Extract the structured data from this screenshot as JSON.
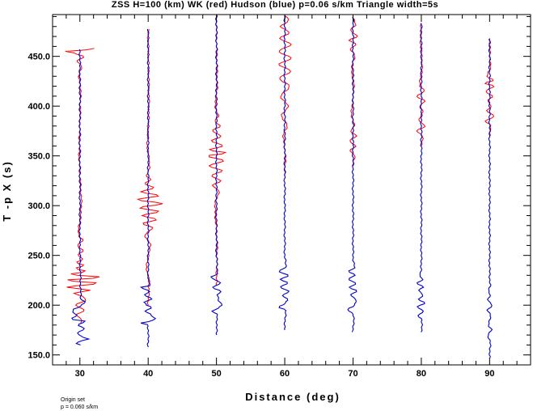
{
  "chart_data": {
    "type": "line",
    "title": "ZSS H=100 (km) WK (red) Hudson (blue) p=0.06 s/km Triangle width=5s",
    "xlabel": "Distance (deg)",
    "ylabel": "T -p X (s)",
    "xlim": [
      26,
      96
    ],
    "ylim": [
      140,
      492
    ],
    "x_ticks": [
      30,
      40,
      50,
      60,
      70,
      80,
      90
    ],
    "x_tick_labels": [
      "30",
      "40",
      "50",
      "60",
      "70",
      "80",
      "90"
    ],
    "y_ticks": [
      150,
      200,
      250,
      300,
      350,
      400,
      450
    ],
    "y_tick_labels": [
      "150.0",
      "200.0",
      "250.0",
      "300.0",
      "350.0",
      "400.0",
      "450.0"
    ],
    "footnote": [
      "Origin set",
      "p = 0.060 s/km"
    ],
    "colors": {
      "wk": "#ff0000",
      "hudson": "#0000cc"
    },
    "traces": [
      {
        "distance": 30,
        "hudson_t": [
          160,
          458
        ],
        "hudson": [
          [
            160,
            0
          ],
          [
            162,
            -0.6
          ],
          [
            164,
            0.3
          ],
          [
            166,
            1.2
          ],
          [
            168,
            0.4
          ],
          [
            172,
            -0.4
          ],
          [
            176,
            0.6
          ],
          [
            180,
            -0.2
          ],
          [
            184,
            0.7
          ],
          [
            186,
            -1.2
          ],
          [
            190,
            -0.4
          ],
          [
            193,
            -1.0
          ],
          [
            196,
            -0.9
          ],
          [
            198,
            -0.1
          ],
          [
            200,
            0.2
          ],
          [
            203,
            0.8
          ],
          [
            206,
            0.1
          ],
          [
            210,
            0.1
          ],
          [
            260,
            0.0
          ],
          [
            458,
            0
          ]
        ],
        "wk_t": [
          182,
          458
        ],
        "wk": [
          [
            182,
            0
          ],
          [
            185,
            0.3
          ],
          [
            190,
            -0.4
          ],
          [
            195,
            0.6
          ],
          [
            200,
            -0.6
          ],
          [
            205,
            0.8
          ],
          [
            208,
            0.6
          ],
          [
            212,
            -0.8
          ],
          [
            215,
            1.4
          ],
          [
            218,
            -1.8
          ],
          [
            222,
            2.5
          ],
          [
            225,
            -2.0
          ],
          [
            228,
            3.0
          ],
          [
            231,
            -1.4
          ],
          [
            234,
            0.8
          ],
          [
            237,
            -0.6
          ],
          [
            240,
            0.6
          ],
          [
            243,
            -0.5
          ],
          [
            246,
            0.5
          ],
          [
            250,
            -0.3
          ],
          [
            255,
            0.4
          ],
          [
            260,
            -0.3
          ],
          [
            265,
            0.4
          ],
          [
            270,
            -0.2
          ],
          [
            300,
            0.2
          ],
          [
            350,
            -0.1
          ],
          [
            420,
            0.1
          ],
          [
            430,
            -0.2
          ],
          [
            440,
            0.3
          ],
          [
            445,
            -0.4
          ],
          [
            450,
            0.5
          ],
          [
            453,
            -0.6
          ],
          [
            455,
            -2.0
          ],
          [
            456,
            0.8
          ],
          [
            458,
            2.0
          ]
        ]
      },
      {
        "distance": 40,
        "hudson_t": [
          158,
          478
        ],
        "hudson": [
          [
            158,
            0
          ],
          [
            180,
            0
          ],
          [
            182,
            -1.0
          ],
          [
            184,
            0.3
          ],
          [
            186,
            1.0
          ],
          [
            190,
            0.4
          ],
          [
            194,
            -0.3
          ],
          [
            198,
            0.5
          ],
          [
            200,
            -0.2
          ],
          [
            203,
            -0.6
          ],
          [
            206,
            0.5
          ],
          [
            210,
            -0.4
          ],
          [
            214,
            0.2
          ],
          [
            218,
            -1.0
          ],
          [
            220,
            0.3
          ],
          [
            224,
            0.1
          ],
          [
            230,
            0.0
          ],
          [
            478,
            0
          ]
        ],
        "wk_t": [
          200,
          478
        ],
        "wk": [
          [
            200,
            0
          ],
          [
            220,
            0.1
          ],
          [
            240,
            -0.2
          ],
          [
            260,
            0.3
          ],
          [
            270,
            -0.4
          ],
          [
            278,
            0.6
          ],
          [
            282,
            -0.8
          ],
          [
            286,
            1.2
          ],
          [
            290,
            -0.8
          ],
          [
            294,
            1.5
          ],
          [
            298,
            -1.2
          ],
          [
            302,
            2.0
          ],
          [
            306,
            -1.5
          ],
          [
            310,
            1.5
          ],
          [
            314,
            -1.0
          ],
          [
            318,
            0.8
          ],
          [
            322,
            -0.5
          ],
          [
            326,
            0.4
          ],
          [
            330,
            -0.2
          ],
          [
            340,
            0.2
          ],
          [
            360,
            -0.1
          ],
          [
            400,
            0.1
          ],
          [
            478,
            0
          ]
        ]
      },
      {
        "distance": 50,
        "hudson_t": [
          170,
          492
        ],
        "hudson": [
          [
            170,
            0
          ],
          [
            190,
            0.1
          ],
          [
            194,
            -0.6
          ],
          [
            197,
            0.2
          ],
          [
            200,
            0.8
          ],
          [
            205,
            0.3
          ],
          [
            210,
            0.1
          ],
          [
            214,
            0.6
          ],
          [
            218,
            -0.5
          ],
          [
            222,
            0.6
          ],
          [
            226,
            -0.3
          ],
          [
            228,
            -0.8
          ],
          [
            232,
            0.2
          ],
          [
            238,
            0.1
          ],
          [
            250,
            0.0
          ],
          [
            492,
            0
          ]
        ],
        "wk_t": [
          220,
          492
        ],
        "wk": [
          [
            220,
            0
          ],
          [
            260,
            0.1
          ],
          [
            300,
            -0.2
          ],
          [
            315,
            0.3
          ],
          [
            320,
            -0.5
          ],
          [
            325,
            0.6
          ],
          [
            330,
            -0.7
          ],
          [
            335,
            0.8
          ],
          [
            340,
            -1.0
          ],
          [
            345,
            1.0
          ],
          [
            350,
            -1.2
          ],
          [
            353,
            1.4
          ],
          [
            356,
            -1.0
          ],
          [
            360,
            0.9
          ],
          [
            365,
            -0.7
          ],
          [
            370,
            0.6
          ],
          [
            375,
            -0.5
          ],
          [
            380,
            0.5
          ],
          [
            385,
            -0.3
          ],
          [
            390,
            0.3
          ],
          [
            400,
            -0.2
          ],
          [
            420,
            0.1
          ],
          [
            492,
            0
          ]
        ]
      },
      {
        "distance": 60,
        "hudson_t": [
          175,
          492
        ],
        "hudson": [
          [
            175,
            0
          ],
          [
            195,
            0.1
          ],
          [
            198,
            -0.8
          ],
          [
            202,
            0.1
          ],
          [
            205,
            0.4
          ],
          [
            210,
            -0.3
          ],
          [
            214,
            0.6
          ],
          [
            218,
            -0.6
          ],
          [
            222,
            0.4
          ],
          [
            226,
            -0.6
          ],
          [
            230,
            0.5
          ],
          [
            234,
            -0.8
          ],
          [
            238,
            0.2
          ],
          [
            242,
            0.1
          ],
          [
            250,
            0.0
          ],
          [
            492,
            0
          ]
        ],
        "wk_t": [
          330,
          492
        ],
        "wk": [
          [
            330,
            0
          ],
          [
            350,
            0.1
          ],
          [
            370,
            -0.2
          ],
          [
            380,
            0.3
          ],
          [
            390,
            -0.4
          ],
          [
            400,
            0.4
          ],
          [
            410,
            -0.5
          ],
          [
            420,
            0.6
          ],
          [
            428,
            -0.7
          ],
          [
            435,
            0.8
          ],
          [
            442,
            -0.8
          ],
          [
            448,
            0.9
          ],
          [
            455,
            -0.8
          ],
          [
            462,
            0.9
          ],
          [
            468,
            -0.7
          ],
          [
            474,
            0.6
          ],
          [
            480,
            -0.5
          ],
          [
            486,
            0.5
          ],
          [
            492,
            0
          ]
        ]
      },
      {
        "distance": 70,
        "hudson_t": [
          173,
          490
        ],
        "hudson": [
          [
            173,
            0
          ],
          [
            190,
            0.1
          ],
          [
            196,
            -0.7
          ],
          [
            200,
            0.2
          ],
          [
            206,
            0.4
          ],
          [
            210,
            -0.3
          ],
          [
            214,
            0.5
          ],
          [
            218,
            -0.5
          ],
          [
            222,
            0.4
          ],
          [
            226,
            -0.6
          ],
          [
            230,
            0.3
          ],
          [
            234,
            -0.6
          ],
          [
            238,
            0.2
          ],
          [
            250,
            0.0
          ],
          [
            490,
            0
          ]
        ],
        "wk_t": [
          340,
          490
        ],
        "wk": [
          [
            340,
            0
          ],
          [
            350,
            0.2
          ],
          [
            355,
            -0.4
          ],
          [
            360,
            0.4
          ],
          [
            365,
            -0.5
          ],
          [
            370,
            0.4
          ],
          [
            375,
            -0.3
          ],
          [
            380,
            0.2
          ],
          [
            390,
            -0.2
          ],
          [
            420,
            0.1
          ],
          [
            440,
            -0.2
          ],
          [
            450,
            0.3
          ],
          [
            458,
            -0.4
          ],
          [
            462,
            0.5
          ],
          [
            466,
            -0.5
          ],
          [
            470,
            0.6
          ],
          [
            476,
            -0.4
          ],
          [
            482,
            0.4
          ],
          [
            490,
            0
          ]
        ]
      },
      {
        "distance": 80,
        "hudson_t": [
          173,
          484
        ],
        "hudson": [
          [
            173,
            0
          ],
          [
            185,
            0.1
          ],
          [
            190,
            -0.4
          ],
          [
            194,
            0.3
          ],
          [
            198,
            -0.6
          ],
          [
            202,
            0.5
          ],
          [
            206,
            -0.3
          ],
          [
            210,
            0.2
          ],
          [
            215,
            -0.4
          ],
          [
            218,
            0.3
          ],
          [
            222,
            -0.5
          ],
          [
            226,
            0.2
          ],
          [
            230,
            -0.3
          ],
          [
            235,
            0.0
          ],
          [
            250,
            0.0
          ],
          [
            484,
            0
          ]
        ],
        "wk_t": [
          360,
          484
        ],
        "wk": [
          [
            360,
            0
          ],
          [
            370,
            0.2
          ],
          [
            375,
            -0.6
          ],
          [
            380,
            0.5
          ],
          [
            385,
            -0.3
          ],
          [
            395,
            0.2
          ],
          [
            400,
            -0.3
          ],
          [
            405,
            0.5
          ],
          [
            410,
            -0.6
          ],
          [
            415,
            0.4
          ],
          [
            420,
            -0.2
          ],
          [
            440,
            0.1
          ],
          [
            470,
            -0.1
          ],
          [
            484,
            0
          ]
        ]
      },
      {
        "distance": 90,
        "hudson_t": [
          147,
          468
        ],
        "hudson": [
          [
            147,
            0
          ],
          [
            160,
            0.1
          ],
          [
            170,
            -0.2
          ],
          [
            175,
            0.3
          ],
          [
            180,
            -0.2
          ],
          [
            190,
            0.2
          ],
          [
            195,
            -0.3
          ],
          [
            200,
            0.3
          ],
          [
            205,
            -0.2
          ],
          [
            210,
            0.1
          ],
          [
            215,
            -0.2
          ],
          [
            220,
            0.1
          ],
          [
            230,
            0.0
          ],
          [
            468,
            0
          ]
        ],
        "wk_t": [
          370,
          468
        ],
        "wk": [
          [
            370,
            0
          ],
          [
            380,
            0.2
          ],
          [
            385,
            -0.6
          ],
          [
            390,
            0.6
          ],
          [
            395,
            -0.3
          ],
          [
            400,
            0.2
          ],
          [
            405,
            -0.3
          ],
          [
            410,
            0.4
          ],
          [
            415,
            -0.5
          ],
          [
            420,
            0.6
          ],
          [
            423,
            -0.7
          ],
          [
            426,
            0.5
          ],
          [
            430,
            -0.3
          ],
          [
            440,
            0.1
          ],
          [
            468,
            0
          ]
        ]
      }
    ]
  }
}
